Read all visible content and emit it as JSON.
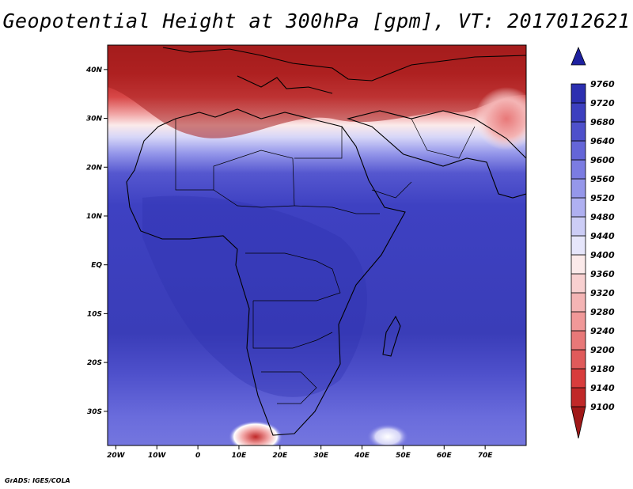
{
  "title": "Geopotential Height at 300hPa [gpm], VT: 2017012621",
  "credit": "GrADS: IGES/COLA",
  "map": {
    "lat_ticks": [
      {
        "label": "40N",
        "lat": 40
      },
      {
        "label": "30N",
        "lat": 30
      },
      {
        "label": "20N",
        "lat": 20
      },
      {
        "label": "10N",
        "lat": 10
      },
      {
        "label": "EQ",
        "lat": 0
      },
      {
        "label": "10S",
        "lat": -10
      },
      {
        "label": "20S",
        "lat": -20
      },
      {
        "label": "30S",
        "lat": -30
      }
    ],
    "lon_ticks": [
      {
        "label": "20W",
        "lon": -20
      },
      {
        "label": "10W",
        "lon": -10
      },
      {
        "label": "0",
        "lon": 0
      },
      {
        "label": "10E",
        "lon": 10
      },
      {
        "label": "20E",
        "lon": 20
      },
      {
        "label": "30E",
        "lon": 30
      },
      {
        "label": "40E",
        "lon": 40
      },
      {
        "label": "50E",
        "lon": 50
      },
      {
        "label": "60E",
        "lon": 60
      },
      {
        "label": "70E",
        "lon": 70
      }
    ],
    "lat_range": [
      -37,
      45
    ],
    "lon_range": [
      -22,
      80
    ]
  },
  "colorbar": {
    "levels": [
      "9100",
      "9140",
      "9180",
      "9200",
      "9240",
      "9280",
      "9320",
      "9360",
      "9400",
      "9440",
      "9480",
      "9520",
      "9560",
      "9600",
      "9640",
      "9680",
      "9720",
      "9760"
    ],
    "colors": [
      "#a01818",
      "#c02828",
      "#d83c3c",
      "#e05a5a",
      "#e87878",
      "#f09898",
      "#f4b4b4",
      "#f8d0d0",
      "#fbeaea",
      "#e6e6fb",
      "#cccdf6",
      "#afb0f1",
      "#9597ea",
      "#7b7ce2",
      "#6465d8",
      "#4e50cb",
      "#3c3fbf",
      "#2c2fb0",
      "#1e21a0"
    ]
  }
}
